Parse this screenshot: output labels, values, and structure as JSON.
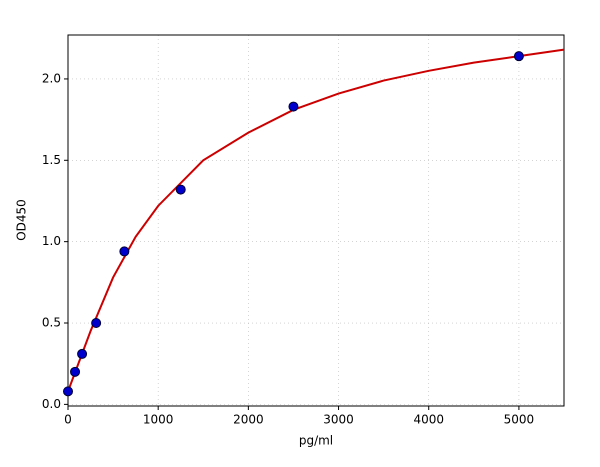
{
  "chart_data": {
    "type": "scatter",
    "xlabel": "pg/ml",
    "ylabel": "OD450",
    "xlim": [
      0,
      5500
    ],
    "xticks": [
      0,
      1000,
      2000,
      3000,
      4000,
      5000
    ],
    "ylim": [
      -0.01,
      2.27
    ],
    "yticks": [
      {
        "value": 0,
        "label": "0.0"
      },
      0.5,
      {
        "value": 1,
        "label": "1.0"
      },
      1.5,
      {
        "value": 2,
        "label": "2.0"
      }
    ],
    "grid": true,
    "series": [
      {
        "type": "line",
        "color": "#cc0000",
        "x": [
          0,
          250,
          500,
          750,
          1000,
          1500,
          2000,
          2500,
          3000,
          3500,
          4000,
          4500,
          5000,
          5500
        ],
        "values": [
          0.08,
          0.45,
          0.78,
          1.03,
          1.22,
          1.5,
          1.67,
          1.81,
          1.91,
          1.99,
          2.05,
          2.1,
          2.14,
          2.18
        ]
      },
      {
        "type": "scatter",
        "color": "#0000cc",
        "x": [
          0,
          78,
          156,
          312,
          625,
          1250,
          2500,
          5000
        ],
        "values": [
          0.08,
          0.2,
          0.31,
          0.5,
          0.94,
          1.32,
          1.83,
          2.14
        ]
      }
    ]
  }
}
